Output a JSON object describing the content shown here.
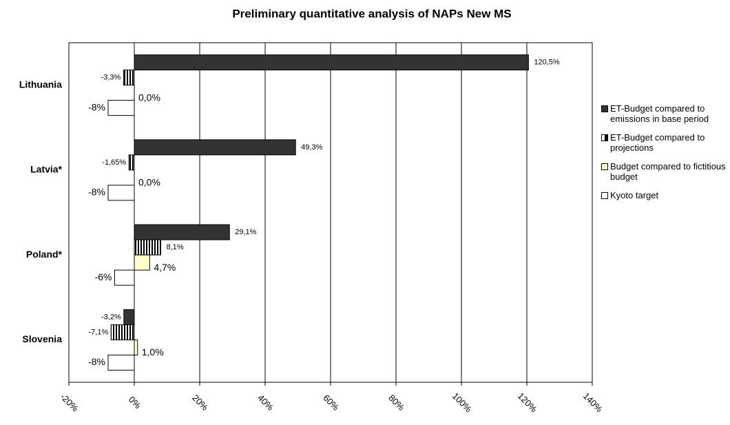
{
  "chart_data": {
    "type": "hbar",
    "title": "Preliminary quantitative analysis of NAPs New MS",
    "categories": [
      "Lithuania",
      "Latvia*",
      "Poland*",
      "Slovenia"
    ],
    "series": [
      {
        "name": "ET-Budget compared to emissions in base period",
        "color": "#333333",
        "pattern": "solid",
        "values": [
          120.5,
          49.3,
          29.1,
          -3.2
        ],
        "value_labels": [
          "120,5%",
          "49,3%",
          "29,1%",
          "-3,2%"
        ]
      },
      {
        "name": "ET-Budget compared to projections",
        "color": "#000000",
        "pattern": "vertical-stripes",
        "values": [
          -3.3,
          -1.65,
          8.1,
          -7.1
        ],
        "value_labels": [
          "-3,3%",
          "-1,65%",
          "8,1%",
          "-7,1%"
        ]
      },
      {
        "name": "Budget compared to fictitious budget",
        "color": "#ffffcc",
        "pattern": "solid",
        "values": [
          0.0,
          0.0,
          4.7,
          1.0
        ],
        "value_labels": [
          "0,0%",
          "0,0%",
          "4,7%",
          "1,0%"
        ]
      },
      {
        "name": "Kyoto target",
        "color": "#ffffff",
        "pattern": "solid",
        "values": [
          -8,
          -8,
          -6,
          -8
        ],
        "value_labels": [
          "-8%",
          "-8%",
          "-6%",
          "-8%"
        ]
      }
    ],
    "xlim": [
      -20,
      140
    ],
    "xticks": [
      {
        "value": -20,
        "label": "-20%"
      },
      {
        "value": 0,
        "label": "0%"
      },
      {
        "value": 20,
        "label": "20%"
      },
      {
        "value": 40,
        "label": "40%"
      },
      {
        "value": 60,
        "label": "60%"
      },
      {
        "value": 80,
        "label": "80%"
      },
      {
        "value": 100,
        "label": "100%"
      },
      {
        "value": 120,
        "label": "120%"
      },
      {
        "value": 140,
        "label": "140%"
      }
    ],
    "grid": true,
    "legend": "right"
  }
}
